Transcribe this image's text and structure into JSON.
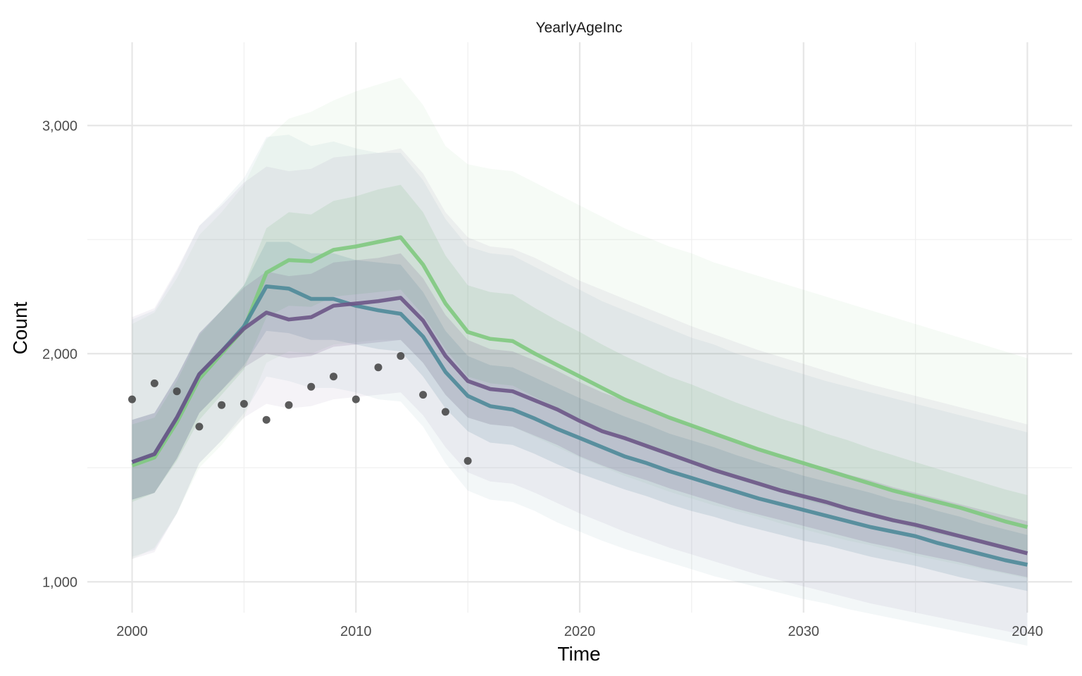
{
  "chart_data": {
    "type": "line",
    "title": "YearlyAgeInc",
    "xlabel": "Time",
    "ylabel": "Count",
    "xlim": [
      1998,
      2042
    ],
    "ylim": [
      865,
      3365
    ],
    "x_ticks": [
      2000,
      2010,
      2020,
      2030,
      2040
    ],
    "x_tick_labels": [
      "2000",
      "2010",
      "2020",
      "2030",
      "2040"
    ],
    "y_ticks": [
      1000,
      2000,
      3000
    ],
    "y_tick_labels": [
      "1,000",
      "2,000",
      "3,000"
    ],
    "grid": true,
    "legend": "none",
    "colors": {
      "green": "#7fc97f",
      "teal": "#4f8a99",
      "purple": "#6d5687",
      "points": "#404040"
    },
    "series": [
      {
        "color": "#7fc97f",
        "x": [
          2000,
          2001,
          2002,
          2003,
          2004,
          2005,
          2006,
          2007,
          2008,
          2009,
          2010,
          2011,
          2012,
          2013,
          2014,
          2015,
          2016,
          2017,
          2018,
          2019,
          2020,
          2021,
          2022,
          2023,
          2024,
          2025,
          2026,
          2027,
          2028,
          2029,
          2030,
          2031,
          2032,
          2033,
          2034,
          2035,
          2036,
          2037,
          2038,
          2039,
          2040
        ],
        "y": [
          1510,
          1545,
          1700,
          1890,
          2000,
          2110,
          2355,
          2410,
          2405,
          2455,
          2470,
          2490,
          2510,
          2390,
          2220,
          2095,
          2065,
          2055,
          2000,
          1950,
          1900,
          1850,
          1800,
          1760,
          1720,
          1685,
          1650,
          1615,
          1580,
          1550,
          1520,
          1490,
          1460,
          1430,
          1400,
          1375,
          1350,
          1325,
          1295,
          1265,
          1240
        ],
        "bands": [
          {
            "lower": [
              1350,
              1390,
              1530,
              1710,
              1820,
              1930,
              2160,
              2210,
              2205,
              2250,
              2260,
              2270,
              2280,
              2170,
              2020,
              1900,
              1870,
              1860,
              1810,
              1760,
              1715,
              1670,
              1625,
              1585,
              1550,
              1515,
              1480,
              1450,
              1420,
              1390,
              1360,
              1335,
              1310,
              1285,
              1260,
              1235,
              1210,
              1190,
              1165,
              1140,
              1120
            ],
            "upper": [
              1690,
              1720,
              1880,
              2080,
              2190,
              2300,
              2550,
              2620,
              2610,
              2670,
              2690,
              2720,
              2740,
              2620,
              2430,
              2300,
              2270,
              2260,
              2200,
              2145,
              2095,
              2040,
              1990,
              1945,
              1900,
              1865,
              1825,
              1785,
              1750,
              1715,
              1685,
              1650,
              1620,
              1585,
              1555,
              1525,
              1495,
              1465,
              1435,
              1405,
              1380
            ]
          },
          {
            "lower": [
              1100,
              1150,
              1300,
              1500,
              1600,
              1720,
              1960,
              2010,
              2000,
              2040,
              2050,
              2060,
              2060,
              1960,
              1820,
              1720,
              1690,
              1680,
              1635,
              1590,
              1545,
              1505,
              1465,
              1430,
              1395,
              1365,
              1335,
              1310,
              1285,
              1255,
              1230,
              1205,
              1180,
              1160,
              1135,
              1115,
              1095,
              1075,
              1055,
              1035,
              1015
            ],
            "upper": [
              2130,
              2180,
              2330,
              2520,
              2620,
              2740,
              2940,
              3030,
              3060,
              3110,
              3150,
              3180,
              3210,
              3090,
              2910,
              2830,
              2810,
              2800,
              2750,
              2700,
              2650,
              2600,
              2550,
              2510,
              2470,
              2440,
              2400,
              2370,
              2340,
              2310,
              2280,
              2250,
              2220,
              2190,
              2160,
              2130,
              2100,
              2070,
              2040,
              2010,
              1980
            ]
          }
        ]
      },
      {
        "color": "#4f8a99",
        "x": [
          2000,
          2001,
          2002,
          2003,
          2004,
          2005,
          2006,
          2007,
          2008,
          2009,
          2010,
          2011,
          2012,
          2013,
          2014,
          2015,
          2016,
          2017,
          2018,
          2019,
          2020,
          2021,
          2022,
          2023,
          2024,
          2025,
          2026,
          2027,
          2028,
          2029,
          2030,
          2031,
          2032,
          2033,
          2034,
          2035,
          2036,
          2037,
          2038,
          2039,
          2040
        ],
        "y": [
          1525,
          1560,
          1720,
          1910,
          2010,
          2120,
          2295,
          2285,
          2240,
          2240,
          2210,
          2190,
          2175,
          2075,
          1920,
          1815,
          1770,
          1755,
          1715,
          1670,
          1630,
          1590,
          1550,
          1520,
          1485,
          1455,
          1425,
          1395,
          1365,
          1340,
          1315,
          1290,
          1265,
          1240,
          1220,
          1200,
          1170,
          1145,
          1120,
          1095,
          1075
        ],
        "bands": [
          {
            "lower": [
              1360,
              1390,
              1540,
              1740,
              1840,
              1950,
              2100,
              2090,
              2060,
              2060,
              2040,
              2020,
              2010,
              1900,
              1760,
              1660,
              1610,
              1600,
              1560,
              1515,
              1475,
              1440,
              1405,
              1375,
              1340,
              1310,
              1285,
              1255,
              1230,
              1205,
              1180,
              1160,
              1135,
              1110,
              1090,
              1070,
              1045,
              1020,
              1000,
              980,
              960
            ],
            "upper": [
              1710,
              1740,
              1900,
              2090,
              2190,
              2300,
              2490,
              2490,
              2440,
              2440,
              2410,
              2400,
              2390,
              2270,
              2100,
              1990,
              1950,
              1940,
              1895,
              1850,
              1805,
              1765,
              1725,
              1690,
              1650,
              1620,
              1590,
              1555,
              1525,
              1495,
              1465,
              1440,
              1415,
              1390,
              1360,
              1340,
              1310,
              1285,
              1255,
              1230,
              1205
            ]
          },
          {
            "lower": [
              1110,
              1140,
              1300,
              1520,
              1620,
              1740,
              1900,
              1880,
              1850,
              1850,
              1830,
              1800,
              1790,
              1680,
              1520,
              1400,
              1360,
              1350,
              1310,
              1260,
              1220,
              1180,
              1145,
              1115,
              1085,
              1055,
              1025,
              1000,
              975,
              950,
              925,
              905,
              880,
              860,
              840,
              820,
              800,
              780,
              760,
              740,
              720
            ],
            "upper": [
              2150,
              2190,
              2360,
              2560,
              2660,
              2770,
              2950,
              2960,
              2910,
              2930,
              2900,
              2880,
              2880,
              2760,
              2590,
              2470,
              2440,
              2430,
              2380,
              2330,
              2280,
              2230,
              2190,
              2150,
              2110,
              2070,
              2040,
              2000,
              1970,
              1940,
              1910,
              1880,
              1855,
              1830,
              1805,
              1780,
              1755,
              1730,
              1705,
              1680,
              1655
            ]
          }
        ]
      },
      {
        "color": "#6d5687",
        "x": [
          2000,
          2001,
          2002,
          2003,
          2004,
          2005,
          2006,
          2007,
          2008,
          2009,
          2010,
          2011,
          2012,
          2013,
          2014,
          2015,
          2016,
          2017,
          2018,
          2019,
          2020,
          2021,
          2022,
          2023,
          2024,
          2025,
          2026,
          2027,
          2028,
          2029,
          2030,
          2031,
          2032,
          2033,
          2034,
          2035,
          2036,
          2037,
          2038,
          2039,
          2040
        ],
        "y": [
          1525,
          1560,
          1720,
          1910,
          2010,
          2110,
          2180,
          2150,
          2160,
          2210,
          2220,
          2230,
          2245,
          2145,
          1990,
          1880,
          1845,
          1835,
          1795,
          1755,
          1705,
          1660,
          1630,
          1595,
          1560,
          1525,
          1490,
          1460,
          1430,
          1400,
          1375,
          1350,
          1320,
          1295,
          1270,
          1250,
          1225,
          1200,
          1175,
          1150,
          1125
        ],
        "bands": [
          {
            "lower": [
              1360,
              1390,
              1540,
              1740,
              1840,
              1940,
              2000,
              1980,
              1990,
              2030,
              2040,
              2050,
              2060,
              1960,
              1820,
              1720,
              1690,
              1680,
              1640,
              1600,
              1550,
              1510,
              1475,
              1445,
              1410,
              1380,
              1350,
              1320,
              1295,
              1270,
              1245,
              1220,
              1195,
              1170,
              1150,
              1125,
              1105,
              1085,
              1060,
              1040,
              1020
            ],
            "upper": [
              1710,
              1740,
              1900,
              2090,
              2190,
              2290,
              2360,
              2340,
              2350,
              2400,
              2410,
              2420,
              2440,
              2330,
              2170,
              2060,
              2020,
              2010,
              1970,
              1925,
              1875,
              1830,
              1795,
              1755,
              1720,
              1685,
              1650,
              1615,
              1585,
              1555,
              1525,
              1500,
              1470,
              1445,
              1415,
              1390,
              1365,
              1340,
              1315,
              1290,
              1265
            ]
          },
          {
            "lower": [
              1100,
              1130,
              1300,
              1520,
              1620,
              1720,
              1780,
              1760,
              1770,
              1800,
              1810,
              1820,
              1830,
              1730,
              1590,
              1480,
              1440,
              1430,
              1390,
              1345,
              1300,
              1260,
              1220,
              1185,
              1150,
              1120,
              1090,
              1060,
              1030,
              1005,
              980,
              955,
              930,
              905,
              885,
              865,
              845,
              825,
              805,
              785,
              765
            ],
            "upper": [
              2160,
              2200,
              2370,
              2560,
              2650,
              2750,
              2820,
              2800,
              2810,
              2860,
              2870,
              2880,
              2900,
              2790,
              2620,
              2510,
              2470,
              2460,
              2420,
              2370,
              2320,
              2280,
              2240,
              2200,
              2160,
              2120,
              2085,
              2050,
              2015,
              1985,
              1955,
              1925,
              1895,
              1865,
              1840,
              1815,
              1790,
              1765,
              1740,
              1715,
              1690
            ]
          }
        ]
      }
    ],
    "points": {
      "x": [
        2000,
        2001,
        2002,
        2003,
        2004,
        2005,
        2006,
        2007,
        2008,
        2009,
        2010,
        2011,
        2012,
        2013,
        2014,
        2015
      ],
      "y": [
        1800,
        1870,
        1835,
        1680,
        1775,
        1780,
        1710,
        1775,
        1855,
        1900,
        1800,
        1940,
        1990,
        1820,
        1745,
        1530
      ]
    }
  }
}
